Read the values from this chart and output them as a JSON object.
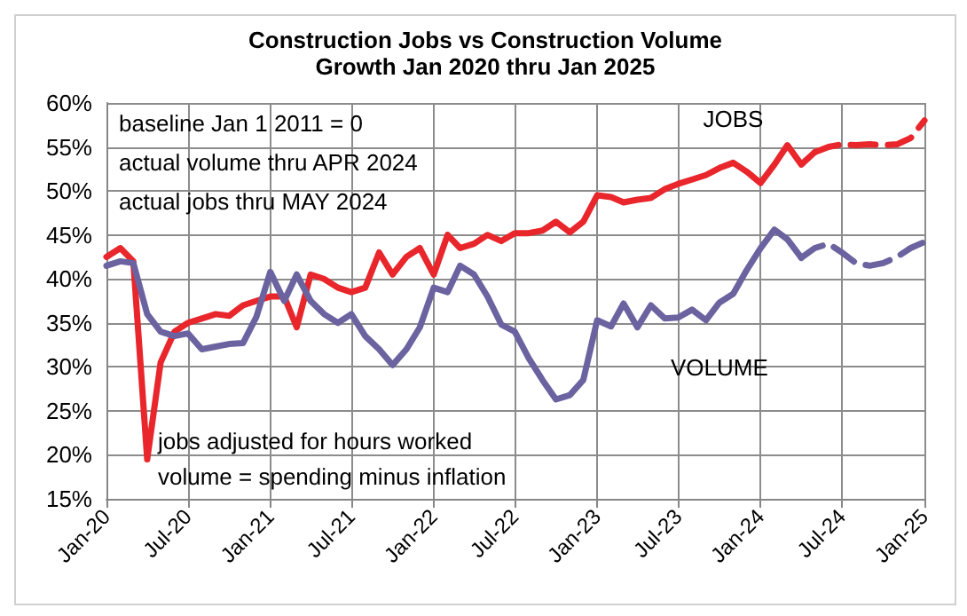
{
  "chart_data": {
    "type": "line",
    "title": "Construction Jobs vs Construction Volume",
    "subtitle": "Growth Jan 2020 thru Jan 2025",
    "x": [
      "2020-01",
      "2020-02",
      "2020-03",
      "2020-04",
      "2020-05",
      "2020-06",
      "2020-07",
      "2020-08",
      "2020-09",
      "2020-10",
      "2020-11",
      "2020-12",
      "2021-01",
      "2021-02",
      "2021-03",
      "2021-04",
      "2021-05",
      "2021-06",
      "2021-07",
      "2021-08",
      "2021-09",
      "2021-10",
      "2021-11",
      "2021-12",
      "2022-01",
      "2022-02",
      "2022-03",
      "2022-04",
      "2022-05",
      "2022-06",
      "2022-07",
      "2022-08",
      "2022-09",
      "2022-10",
      "2022-11",
      "2022-12",
      "2023-01",
      "2023-02",
      "2023-03",
      "2023-04",
      "2023-05",
      "2023-06",
      "2023-07",
      "2023-08",
      "2023-09",
      "2023-10",
      "2023-11",
      "2023-12",
      "2024-01",
      "2024-02",
      "2024-03",
      "2024-04",
      "2024-05",
      "2024-06",
      "2024-07",
      "2024-08",
      "2024-09",
      "2024-10",
      "2024-11",
      "2024-12",
      "2025-01"
    ],
    "series": [
      {
        "name": "JOBS",
        "color": "#e8262b",
        "line_style": "solid",
        "values": [
          42.5,
          43.5,
          42,
          19.5,
          30.5,
          34,
          35,
          35.5,
          36,
          35.8,
          37,
          37.5,
          38,
          38,
          34.5,
          40.5,
          40,
          39,
          38.5,
          39,
          43,
          40.5,
          42.5,
          43.5,
          40.5,
          45,
          43.5,
          44,
          45,
          44.3,
          45.2,
          45.2,
          45.5,
          46.5,
          45.3,
          46.5,
          49.5,
          49.3,
          48.7,
          49,
          49.2,
          50.2,
          50.8,
          51.3,
          51.8,
          52.6,
          53.2,
          52.2,
          50.9,
          53,
          55.2,
          53,
          54.4,
          null,
          null,
          null,
          null,
          null,
          null,
          null,
          null
        ]
      },
      {
        "color": "#e8262b",
        "line_style": "dashed",
        "values": [
          null,
          null,
          null,
          null,
          null,
          null,
          null,
          null,
          null,
          null,
          null,
          null,
          null,
          null,
          null,
          null,
          null,
          null,
          null,
          null,
          null,
          null,
          null,
          null,
          null,
          null,
          null,
          null,
          null,
          null,
          null,
          null,
          null,
          null,
          null,
          null,
          null,
          null,
          null,
          null,
          null,
          null,
          null,
          null,
          null,
          null,
          null,
          null,
          null,
          null,
          null,
          null,
          54.4,
          55,
          55.3,
          55.2,
          55.3,
          55.2,
          55.3,
          56,
          58
        ]
      },
      {
        "name": "VOLUME",
        "color": "#6b62a0",
        "line_style": "solid",
        "values": [
          41.5,
          42,
          41.8,
          36,
          34,
          33.5,
          33.8,
          32,
          32.3,
          32.6,
          32.7,
          35.7,
          40.8,
          37.5,
          40.5,
          37.5,
          36,
          35,
          36,
          33.5,
          32,
          30.2,
          32,
          34.5,
          39,
          38.5,
          41.5,
          40.5,
          38,
          34.8,
          34,
          31,
          28.5,
          26.3,
          26.8,
          28.5,
          35.3,
          34.6,
          37.2,
          34.5,
          37,
          35.5,
          35.6,
          36.5,
          35.3,
          37.3,
          38.3,
          41,
          43.5,
          45.6,
          44.5,
          42.4,
          null,
          null,
          null,
          null,
          null,
          null,
          null,
          null,
          null
        ]
      },
      {
        "color": "#6b62a0",
        "line_style": "dashed",
        "values": [
          null,
          null,
          null,
          null,
          null,
          null,
          null,
          null,
          null,
          null,
          null,
          null,
          null,
          null,
          null,
          null,
          null,
          null,
          null,
          null,
          null,
          null,
          null,
          null,
          null,
          null,
          null,
          null,
          null,
          null,
          null,
          null,
          null,
          null,
          null,
          null,
          null,
          null,
          null,
          null,
          null,
          null,
          null,
          null,
          null,
          null,
          null,
          null,
          null,
          null,
          null,
          42.4,
          43.5,
          44,
          43,
          41.8,
          41.5,
          41.8,
          42.5,
          43.5,
          44.2
        ]
      }
    ],
    "xlim": [
      "2020-01",
      "2025-01"
    ],
    "xticks": [
      {
        "value": "2020-01",
        "label": "Jan-20"
      },
      {
        "value": "2020-07",
        "label": "Jul-20"
      },
      {
        "value": "2021-01",
        "label": "Jan-21"
      },
      {
        "value": "2021-07",
        "label": "Jul-21"
      },
      {
        "value": "2022-01",
        "label": "Jan-22"
      },
      {
        "value": "2022-07",
        "label": "Jul-22"
      },
      {
        "value": "2023-01",
        "label": "Jan-23"
      },
      {
        "value": "2023-07",
        "label": "Jul-23"
      },
      {
        "value": "2024-01",
        "label": "Jan-24"
      },
      {
        "value": "2024-07",
        "label": "Jul-24"
      },
      {
        "value": "2025-01",
        "label": "Jan-25"
      }
    ],
    "ylim": [
      15,
      60
    ],
    "yticks": [
      {
        "value": 15,
        "label": "15%"
      },
      {
        "value": 20,
        "label": "20%"
      },
      {
        "value": 25,
        "label": "25%"
      },
      {
        "value": 30,
        "label": "30%"
      },
      {
        "value": 35,
        "label": "35%"
      },
      {
        "value": 40,
        "label": "40%"
      },
      {
        "value": 45,
        "label": "45%"
      },
      {
        "value": 50,
        "label": "50%"
      },
      {
        "value": 55,
        "label": "55%"
      },
      {
        "value": 60,
        "label": "60%"
      }
    ],
    "grid": true,
    "marker": "none",
    "legend": false,
    "annotations": [
      "baseline Jan 1 2011 = 0",
      "actual volume thru APR 2024",
      "actual jobs thru MAY 2024",
      "jobs adjusted for hours worked",
      "volume = spending minus inflation"
    ]
  }
}
